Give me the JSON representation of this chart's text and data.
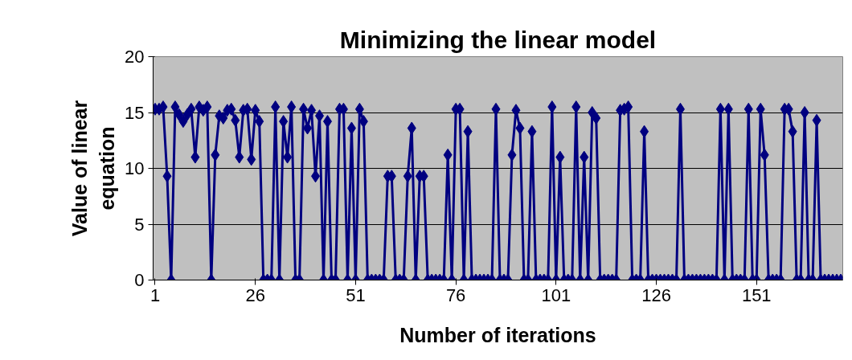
{
  "chart_data": {
    "type": "line",
    "title": "Minimizing the linear model",
    "xlabel": "Number of iterations",
    "ylabel": "Value of linear\nequation",
    "x": [
      1,
      2,
      3,
      4,
      5,
      6,
      7,
      8,
      9,
      10,
      11,
      12,
      13,
      14,
      15,
      16,
      17,
      18,
      19,
      20,
      21,
      22,
      23,
      24,
      25,
      26,
      27,
      28,
      29,
      30,
      31,
      32,
      33,
      34,
      35,
      36,
      37,
      38,
      39,
      40,
      41,
      42,
      43,
      44,
      45,
      46,
      47,
      48,
      49,
      50,
      51,
      52,
      53,
      54,
      55,
      56,
      57,
      58,
      59,
      60,
      61,
      62,
      63,
      64,
      65,
      66,
      67,
      68,
      69,
      70,
      71,
      72,
      73,
      74,
      75,
      76,
      77,
      78,
      79,
      80,
      81,
      82,
      83,
      84,
      85,
      86,
      87,
      88,
      89,
      90,
      91,
      92,
      93,
      94,
      95,
      96,
      97,
      98,
      99,
      100,
      101,
      102,
      103,
      104,
      105,
      106,
      107,
      108,
      109,
      110,
      111,
      112,
      113,
      114,
      115,
      116,
      117,
      118,
      119,
      120,
      121,
      122,
      123,
      124,
      125,
      126,
      127,
      128,
      129,
      130,
      131,
      132,
      133,
      134,
      135,
      136,
      137,
      138,
      139,
      140,
      141,
      142,
      143,
      144,
      145,
      146,
      147,
      148,
      149,
      150,
      151,
      152,
      153,
      154,
      155,
      156,
      157,
      158,
      159,
      160,
      161,
      162,
      163,
      164,
      165,
      166,
      167,
      168,
      169,
      170,
      171,
      172
    ],
    "series": [
      {
        "color": "#000080",
        "values": [
          15.3,
          15.3,
          15.5,
          9.3,
          0,
          15.5,
          14.8,
          14.2,
          14.8,
          15.3,
          11,
          15.5,
          15.2,
          15.5,
          0,
          11.2,
          14.7,
          14.5,
          15.2,
          15.3,
          14.3,
          11,
          15.2,
          15.3,
          10.8,
          15.2,
          14.2,
          0,
          0,
          0,
          15.5,
          0,
          14.2,
          11,
          15.5,
          0,
          0,
          15.3,
          13.6,
          15.2,
          9.3,
          14.7,
          0,
          14.2,
          0,
          0,
          15.3,
          15.3,
          0,
          13.6,
          0,
          15.3,
          14.2,
          0,
          0,
          0,
          0,
          0,
          9.3,
          9.3,
          0,
          0,
          0,
          9.3,
          13.6,
          0,
          9.3,
          9.3,
          0,
          0,
          0,
          0,
          0,
          11.2,
          0,
          15.3,
          15.3,
          0,
          13.3,
          0,
          0,
          0,
          0,
          0,
          0,
          15.3,
          0,
          0,
          0,
          11.2,
          15.2,
          13.6,
          0,
          0,
          13.3,
          0,
          0,
          0,
          0,
          15.5,
          0,
          11,
          0,
          0,
          0,
          15.5,
          0,
          11,
          0,
          15,
          14.5,
          0,
          0,
          0,
          0,
          0,
          15.2,
          15.3,
          15.5,
          0,
          0,
          0,
          13.3,
          0,
          0,
          0,
          0,
          0,
          0,
          0,
          0,
          15.3,
          0,
          0,
          0,
          0,
          0,
          0,
          0,
          0,
          0,
          15.3,
          0,
          15.3,
          0,
          0,
          0,
          0,
          15.3,
          0,
          0,
          15.3,
          11.2,
          0,
          0,
          0,
          0,
          15.3,
          15.3,
          13.3,
          0,
          0,
          15,
          0,
          0,
          14.3,
          0,
          0,
          0,
          0,
          0,
          0
        ]
      }
    ],
    "xlim": [
      0.5,
      172.5
    ],
    "xticks": [
      1,
      26,
      51,
      76,
      101,
      126,
      151
    ],
    "ylim": [
      0,
      20
    ],
    "yticks": [
      0,
      5,
      10,
      15,
      20
    ],
    "grid": "y",
    "marker": "diamond",
    "line_style": "solid"
  }
}
